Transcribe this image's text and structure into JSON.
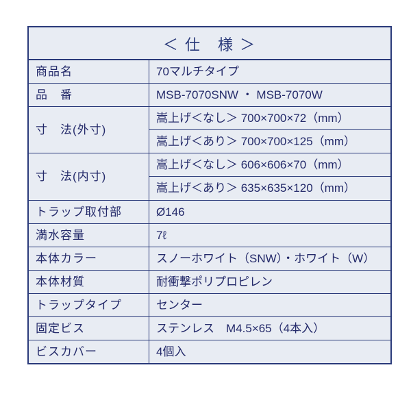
{
  "title": "＜ 仕　様 ＞",
  "colors": {
    "border": "#2a3a7a",
    "bg": "#e8ecf3",
    "text": "#242a6a"
  },
  "rows": {
    "r1_label": "商品名",
    "r1_value": "70マルチタイプ",
    "r2_label": "品　番",
    "r2_value": "MSB-7070SNW ・ MSB-7070W",
    "r3_label": "寸　法(外寸)",
    "r3_value_a": "嵩上げ＜なし＞ 700×700×72（mm）",
    "r3_value_b": "嵩上げ＜あり＞ 700×700×125（mm）",
    "r4_label": "寸　法(内寸)",
    "r4_value_a": "嵩上げ＜なし＞ 606×606×70（mm）",
    "r4_value_b": "嵩上げ＜あり＞ 635×635×120（mm）",
    "r5_label": "トラップ取付部",
    "r5_value": "Ø146",
    "r6_label": "満水容量",
    "r6_value": "7ℓ",
    "r7_label": "本体カラー",
    "r7_value": "スノーホワイト（SNW）・ホワイト（W）",
    "r8_label": "本体材質",
    "r8_value": "耐衝撃ポリプロピレン",
    "r9_label": "トラップタイプ",
    "r9_value": "センター",
    "r10_label": "固定ビス",
    "r10_value": "ステンレス　M4.5×65（4本入）",
    "r11_label": "ビスカバー",
    "r11_value": "4個入"
  }
}
